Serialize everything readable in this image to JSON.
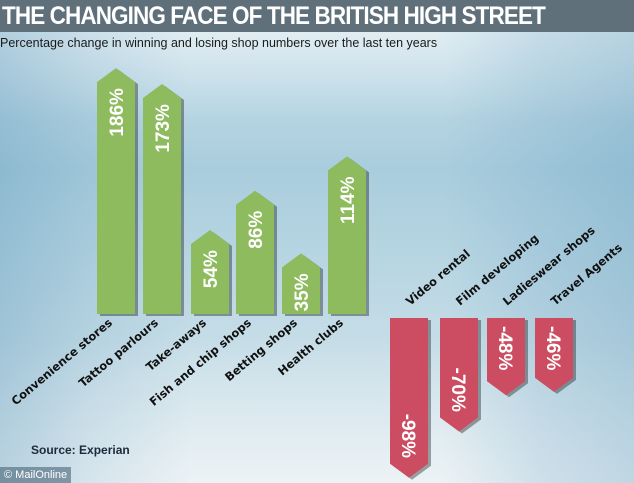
{
  "header": {
    "title": "THE CHANGING FACE OF THE BRITISH HIGH STREET"
  },
  "subtitle": "Percentage change in winning and losing shop numbers over the last ten years",
  "source": "Source: Experian",
  "credit": "© MailOnline",
  "colors": {
    "positive": "#8dbb5e",
    "negative": "#cc4d61",
    "header": "#5f707a"
  },
  "chart_data": {
    "type": "bar",
    "title": "THE CHANGING FACE OF THE BRITISH HIGH STREET",
    "subtitle": "Percentage change in winning and losing shop numbers over the last ten years",
    "categories": [
      "Convenience stores",
      "Tattoo parlours",
      "Take-aways",
      "Fish and chip shops",
      "Betting shops",
      "Health clubs",
      "Video rental",
      "Film developing",
      "Ladieswear shops",
      "Travel Agents"
    ],
    "values": [
      186,
      173,
      54,
      86,
      35,
      114,
      -98,
      -70,
      -48,
      -46
    ],
    "labels": [
      "186%",
      "173%",
      "54%",
      "86%",
      "35%",
      "114%",
      "-98%",
      "-70%",
      "-48%",
      "-46%"
    ],
    "unit": "%",
    "grid": false,
    "legend": "none"
  }
}
